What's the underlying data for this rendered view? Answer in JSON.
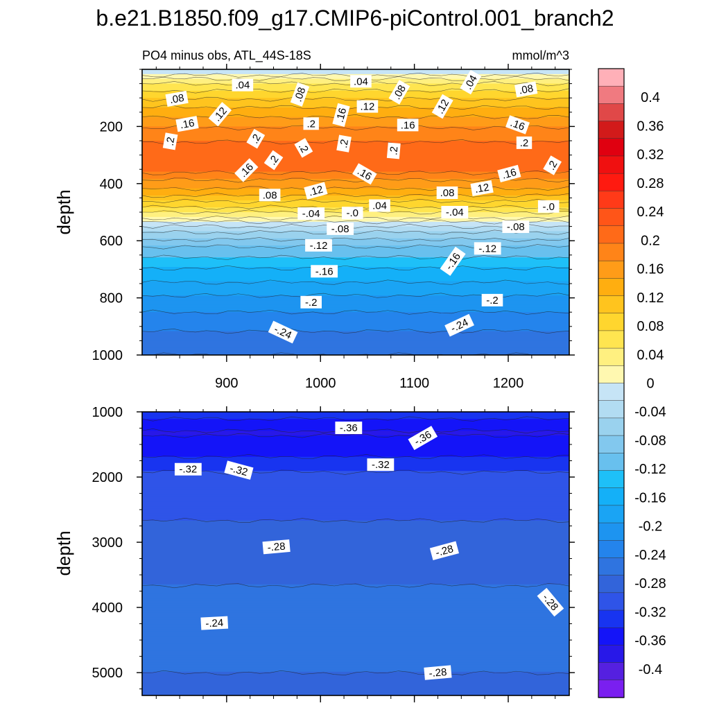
{
  "figure_title": "b.e21.B1850.f09_g17.CMIP6-piControl.001_branch2",
  "chart_data": [
    {
      "type": "contour",
      "panel": "upper",
      "subtitle_left": "PO4 minus obs, ATL_44S-18S",
      "subtitle_right": "mmol/m^3",
      "xlabel": "",
      "ylabel": "depth",
      "xlim": [
        810,
        1265
      ],
      "ylim": [
        1000,
        0
      ],
      "x_ticks": [
        900,
        1000,
        1100,
        1200
      ],
      "x_tick_labels": [
        "900",
        "1000",
        "1100",
        "1200"
      ],
      "y_ticks": [
        200,
        400,
        600,
        800,
        1000
      ],
      "y_tick_labels": [
        "200",
        "400",
        "600",
        "800",
        "1000"
      ],
      "depth_profile": [
        {
          "depth": 10,
          "value": -0.02
        },
        {
          "depth": 40,
          "value": 0.04
        },
        {
          "depth": 80,
          "value": 0.08
        },
        {
          "depth": 130,
          "value": 0.12
        },
        {
          "depth": 180,
          "value": 0.16
        },
        {
          "depth": 260,
          "value": 0.2
        },
        {
          "depth": 330,
          "value": 0.22
        },
        {
          "depth": 400,
          "value": 0.16
        },
        {
          "depth": 460,
          "value": 0.1
        },
        {
          "depth": 520,
          "value": 0.02
        },
        {
          "depth": 560,
          "value": -0.04
        },
        {
          "depth": 620,
          "value": -0.1
        },
        {
          "depth": 700,
          "value": -0.15
        },
        {
          "depth": 800,
          "value": -0.2
        },
        {
          "depth": 900,
          "value": -0.24
        },
        {
          "depth": 1000,
          "value": -0.27
        }
      ],
      "contour_labels": [
        {
          "x": 917,
          "y": 55,
          "text": ".04",
          "angle": 0
        },
        {
          "x": 1043,
          "y": 42,
          "text": ".04",
          "angle": 0
        },
        {
          "x": 1160,
          "y": 45,
          "text": ".04",
          "angle": -60
        },
        {
          "x": 847,
          "y": 103,
          "text": ".08",
          "angle": -10
        },
        {
          "x": 893,
          "y": 157,
          "text": ".12",
          "angle": -50
        },
        {
          "x": 978,
          "y": 88,
          "text": ".08",
          "angle": -70
        },
        {
          "x": 1084,
          "y": 80,
          "text": ".08",
          "angle": -60
        },
        {
          "x": 1219,
          "y": 70,
          "text": ".08",
          "angle": -10
        },
        {
          "x": 1130,
          "y": 130,
          "text": ".12",
          "angle": -60
        },
        {
          "x": 1050,
          "y": 130,
          "text": ".12",
          "angle": 0
        },
        {
          "x": 1022,
          "y": 160,
          "text": ".16",
          "angle": -75
        },
        {
          "x": 858,
          "y": 191,
          "text": ".16",
          "angle": -10
        },
        {
          "x": 1093,
          "y": 195,
          "text": ".16",
          "angle": 0
        },
        {
          "x": 1210,
          "y": 194,
          "text": ".16",
          "angle": 20
        },
        {
          "x": 990,
          "y": 190,
          "text": ".2",
          "angle": 0
        },
        {
          "x": 840,
          "y": 252,
          "text": ".2",
          "angle": -80
        },
        {
          "x": 931,
          "y": 243,
          "text": ".2",
          "angle": -60
        },
        {
          "x": 982,
          "y": 275,
          "text": ".2",
          "angle": 60
        },
        {
          "x": 1025,
          "y": 260,
          "text": ".2",
          "angle": -80
        },
        {
          "x": 1078,
          "y": 285,
          "text": ".2",
          "angle": -85
        },
        {
          "x": 1217,
          "y": 257,
          "text": ".2",
          "angle": 0
        },
        {
          "x": 950,
          "y": 318,
          "text": ".2",
          "angle": -55
        },
        {
          "x": 1247,
          "y": 336,
          "text": ".2",
          "angle": -60
        },
        {
          "x": 921,
          "y": 353,
          "text": ".16",
          "angle": -45
        },
        {
          "x": 1047,
          "y": 366,
          "text": ".16",
          "angle": 30
        },
        {
          "x": 1201,
          "y": 365,
          "text": ".16",
          "angle": -15
        },
        {
          "x": 946,
          "y": 440,
          "text": ".08",
          "angle": 0
        },
        {
          "x": 995,
          "y": 425,
          "text": ".12",
          "angle": -15
        },
        {
          "x": 1135,
          "y": 432,
          "text": ".08",
          "angle": 0
        },
        {
          "x": 1172,
          "y": 416,
          "text": ".12",
          "angle": -10
        },
        {
          "x": 990,
          "y": 505,
          "text": "-.04",
          "angle": 0
        },
        {
          "x": 1034,
          "y": 503,
          "text": "-.0",
          "angle": 0
        },
        {
          "x": 1063,
          "y": 477,
          "text": ".04",
          "angle": 0
        },
        {
          "x": 1143,
          "y": 500,
          "text": "-.04",
          "angle": 0
        },
        {
          "x": 1243,
          "y": 480,
          "text": "-.0",
          "angle": 0
        },
        {
          "x": 1021,
          "y": 558,
          "text": "-.08",
          "angle": 0
        },
        {
          "x": 1208,
          "y": 551,
          "text": "-.08",
          "angle": 0
        },
        {
          "x": 998,
          "y": 616,
          "text": "-.12",
          "angle": 0
        },
        {
          "x": 1178,
          "y": 627,
          "text": "-.12",
          "angle": 0
        },
        {
          "x": 1004,
          "y": 707,
          "text": "-.16",
          "angle": 0
        },
        {
          "x": 1141,
          "y": 672,
          "text": "-.16",
          "angle": -55
        },
        {
          "x": 990,
          "y": 815,
          "text": "-.2",
          "angle": 0
        },
        {
          "x": 1183,
          "y": 808,
          "text": "-.2",
          "angle": 0
        },
        {
          "x": 960,
          "y": 920,
          "text": "-.24",
          "angle": 25
        },
        {
          "x": 1148,
          "y": 896,
          "text": "-.24",
          "angle": -25
        }
      ]
    },
    {
      "type": "contour",
      "panel": "lower",
      "xlabel": "",
      "ylabel": "depth",
      "xlim": [
        810,
        1265
      ],
      "ylim": [
        5350,
        1000
      ],
      "y_ticks": [
        1000,
        2000,
        3000,
        4000,
        5000
      ],
      "y_tick_labels": [
        "1000",
        "2000",
        "3000",
        "4000",
        "5000"
      ],
      "depth_profile": [
        {
          "depth": 1000,
          "value": -0.33
        },
        {
          "depth": 1300,
          "value": -0.37
        },
        {
          "depth": 1600,
          "value": -0.35
        },
        {
          "depth": 2000,
          "value": -0.31
        },
        {
          "depth": 2800,
          "value": -0.29
        },
        {
          "depth": 3600,
          "value": -0.27
        },
        {
          "depth": 4500,
          "value": -0.25
        },
        {
          "depth": 5300,
          "value": -0.28
        }
      ],
      "contour_labels": [
        {
          "x": 1030,
          "y": 1245,
          "text": "-.36",
          "angle": 0
        },
        {
          "x": 1109,
          "y": 1400,
          "text": "-.36",
          "angle": -30
        },
        {
          "x": 859,
          "y": 1880,
          "text": "-.32",
          "angle": 0
        },
        {
          "x": 913,
          "y": 1895,
          "text": "-.32",
          "angle": 15
        },
        {
          "x": 1064,
          "y": 1810,
          "text": "-.32",
          "angle": 0
        },
        {
          "x": 953,
          "y": 3070,
          "text": "-.28",
          "angle": -5
        },
        {
          "x": 1132,
          "y": 3130,
          "text": "-.28",
          "angle": -15
        },
        {
          "x": 1245,
          "y": 3920,
          "text": "-.28",
          "angle": 50
        },
        {
          "x": 887,
          "y": 4240,
          "text": "-.24",
          "angle": -3
        },
        {
          "x": 1125,
          "y": 5000,
          "text": "-.28",
          "angle": -5
        }
      ]
    }
  ],
  "colorbar": {
    "levels": [
      0.4,
      0.36,
      0.32,
      0.28,
      0.24,
      0.2,
      0.16,
      0.12,
      0.08,
      0.04,
      0,
      -0.04,
      -0.08,
      -0.12,
      -0.16,
      -0.2,
      -0.24,
      -0.28,
      -0.32,
      -0.36,
      -0.4
    ],
    "labels": [
      "0.4",
      "0.36",
      "0.32",
      "0.28",
      "0.24",
      "0.2",
      "0.16",
      "0.12",
      "0.08",
      "0.04",
      "0",
      "-0.04",
      "-0.08",
      "-0.12",
      "-0.16",
      "-0.2",
      "-0.24",
      "-0.28",
      "-0.32",
      "-0.36",
      "-0.4"
    ],
    "colors": [
      "#ffb0b8",
      "#f07a80",
      "#e04848",
      "#d21a1a",
      "#e00010",
      "#f01010",
      "#ff1a10",
      "#ff3a18",
      "#ff5518",
      "#ff6a18",
      "#ff8418",
      "#ff9c18",
      "#ffae10",
      "#ffc41e",
      "#ffd62e",
      "#ffe550",
      "#fff080",
      "#fff8b0",
      "#c6e4f6",
      "#b2dcf2",
      "#9ad2ee",
      "#82c8ee",
      "#68c0ee",
      "#1ec0f8",
      "#14b0f8",
      "#1aa4f4",
      "#1d94f0",
      "#2484ec",
      "#2f74e0",
      "#3264da",
      "#2f54e8",
      "#1834f0",
      "#1414f8",
      "#2818e8",
      "#5520e0",
      "#7a1ff0"
    ]
  }
}
